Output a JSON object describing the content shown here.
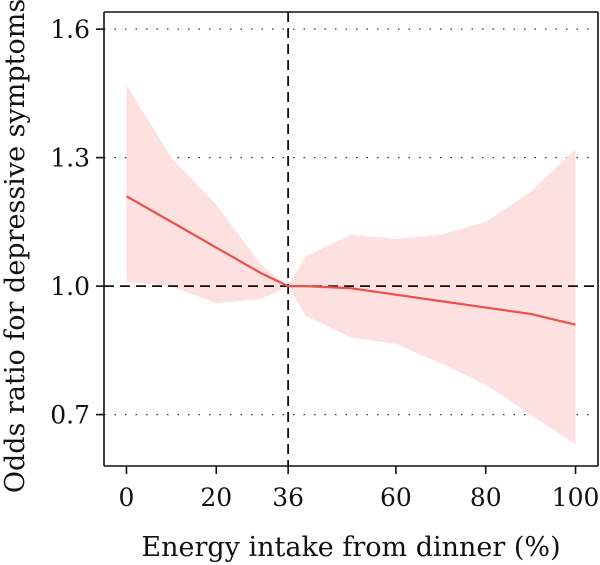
{
  "chart_data": {
    "type": "line",
    "title": "",
    "xlabel": "Energy intake from dinner (%)",
    "ylabel": "Odds ratio for depressive symptoms",
    "xlim": [
      -5,
      105
    ],
    "ylim": [
      0.58,
      1.64
    ],
    "x_ticks": [
      0,
      20,
      36,
      60,
      80,
      100
    ],
    "y_ticks": [
      0.7,
      1.0,
      1.3,
      1.6
    ],
    "y_tick_labels": [
      "0.7",
      "1.0",
      "1.3",
      "1.6"
    ],
    "grid": "dotted horizontal lines at y ticks",
    "reference_lines": {
      "x": 36,
      "y": 1.0
    },
    "colors": {
      "line": "#e8524a",
      "band": "#fde0e0",
      "reference": "#111111"
    },
    "series": [
      {
        "x": [
          0,
          10,
          20,
          30,
          36,
          40,
          50,
          60,
          70,
          80,
          90,
          100
        ],
        "y": [
          1.21,
          1.15,
          1.09,
          1.03,
          1.0,
          1.0,
          0.995,
          0.98,
          0.965,
          0.95,
          0.935,
          0.91
        ],
        "lower": [
          1.01,
          1.0,
          0.96,
          0.97,
          1.0,
          0.93,
          0.88,
          0.865,
          0.82,
          0.77,
          0.7,
          0.63
        ],
        "upper": [
          1.47,
          1.3,
          1.19,
          1.05,
          1.0,
          1.07,
          1.12,
          1.11,
          1.12,
          1.15,
          1.22,
          1.32
        ]
      }
    ]
  }
}
